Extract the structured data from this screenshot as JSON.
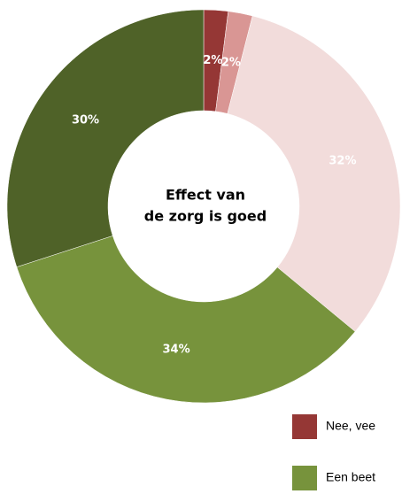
{
  "chart_data": {
    "type": "donut",
    "title": "Effect van de zorg is goed",
    "title_lines": [
      "Effect van",
      "de zorg is goed"
    ],
    "categories": [
      "Nee,  vee",
      null,
      null,
      "Een beet",
      null
    ],
    "values": [
      2,
      2,
      32,
      34,
      30
    ],
    "value_labels": [
      "2%",
      "2%",
      "32%",
      "34%",
      "30%"
    ],
    "colors": [
      "#953735",
      "#d99694",
      "#f2dcdb",
      "#77933c",
      "#4f6228"
    ],
    "legend": "bottom-right"
  }
}
